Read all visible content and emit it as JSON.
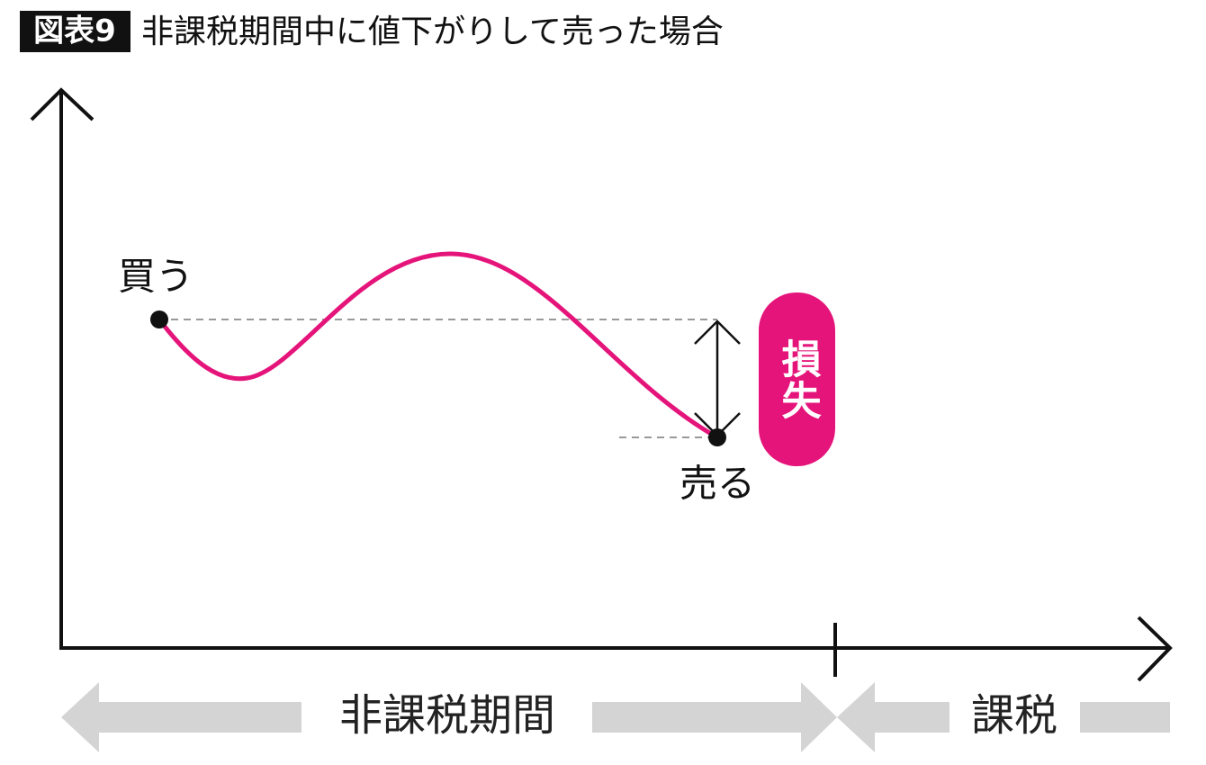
{
  "header": {
    "label": "図表9",
    "title": "非課税期間中に値下がりして売った場合"
  },
  "points": {
    "buy": "買う",
    "sell": "売る"
  },
  "loss": "損失",
  "periods": {
    "tax_free": "非課税期間",
    "taxed": "課税"
  }
}
